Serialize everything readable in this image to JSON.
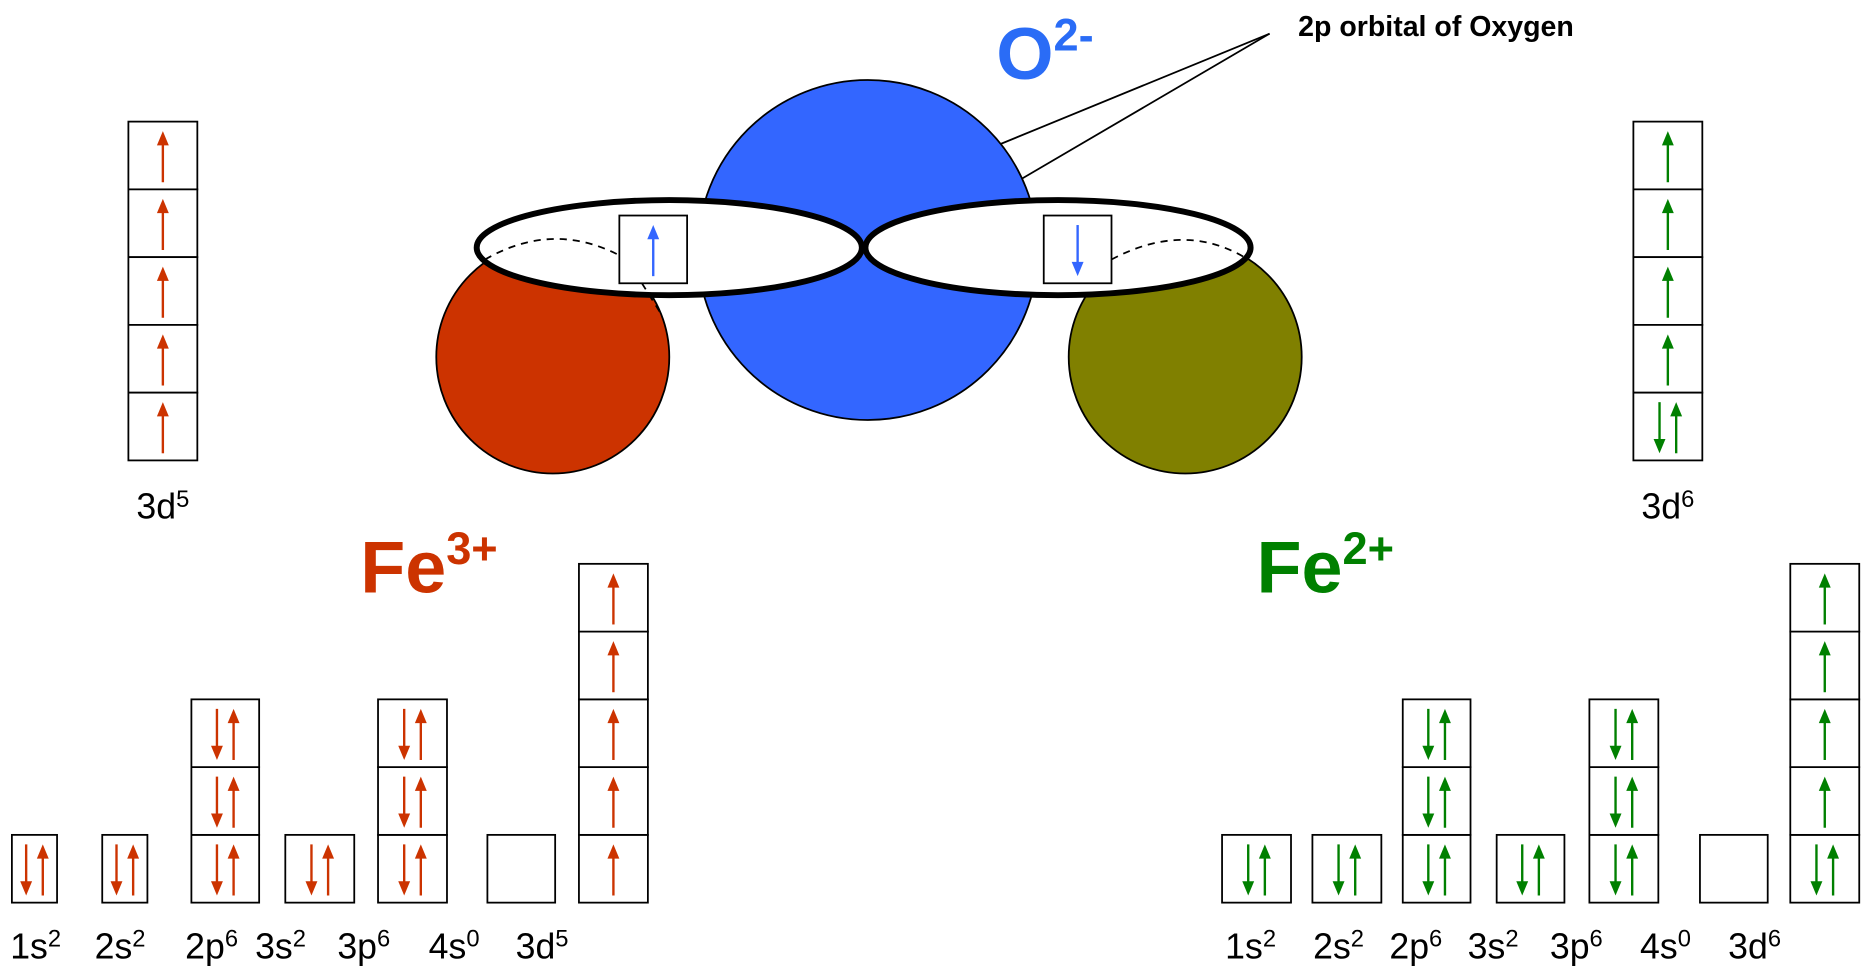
{
  "annotation": "2p orbital of Oxygen",
  "oxygen": {
    "symbol": "O",
    "charge": "2-"
  },
  "fe3": {
    "symbol": "Fe",
    "charge": "3+",
    "side_orbital": {
      "name": "3d",
      "count": "5"
    },
    "orbitals": [
      {
        "name": "1s",
        "count": "2"
      },
      {
        "name": "2s",
        "count": "2"
      },
      {
        "name": "2p",
        "count": "6"
      },
      {
        "name": "3s",
        "count": "2"
      },
      {
        "name": "3p",
        "count": "6"
      },
      {
        "name": "4s",
        "count": "0"
      },
      {
        "name": "3d",
        "count": "5"
      }
    ]
  },
  "fe2": {
    "symbol": "Fe",
    "charge": "2+",
    "side_orbital": {
      "name": "3d",
      "count": "6"
    },
    "orbitals": [
      {
        "name": "1s",
        "count": "2"
      },
      {
        "name": "2s",
        "count": "2"
      },
      {
        "name": "2p",
        "count": "6"
      },
      {
        "name": "3s",
        "count": "2"
      },
      {
        "name": "3p",
        "count": "6"
      },
      {
        "name": "4s",
        "count": "0"
      },
      {
        "name": "3d",
        "count": "6"
      }
    ]
  }
}
